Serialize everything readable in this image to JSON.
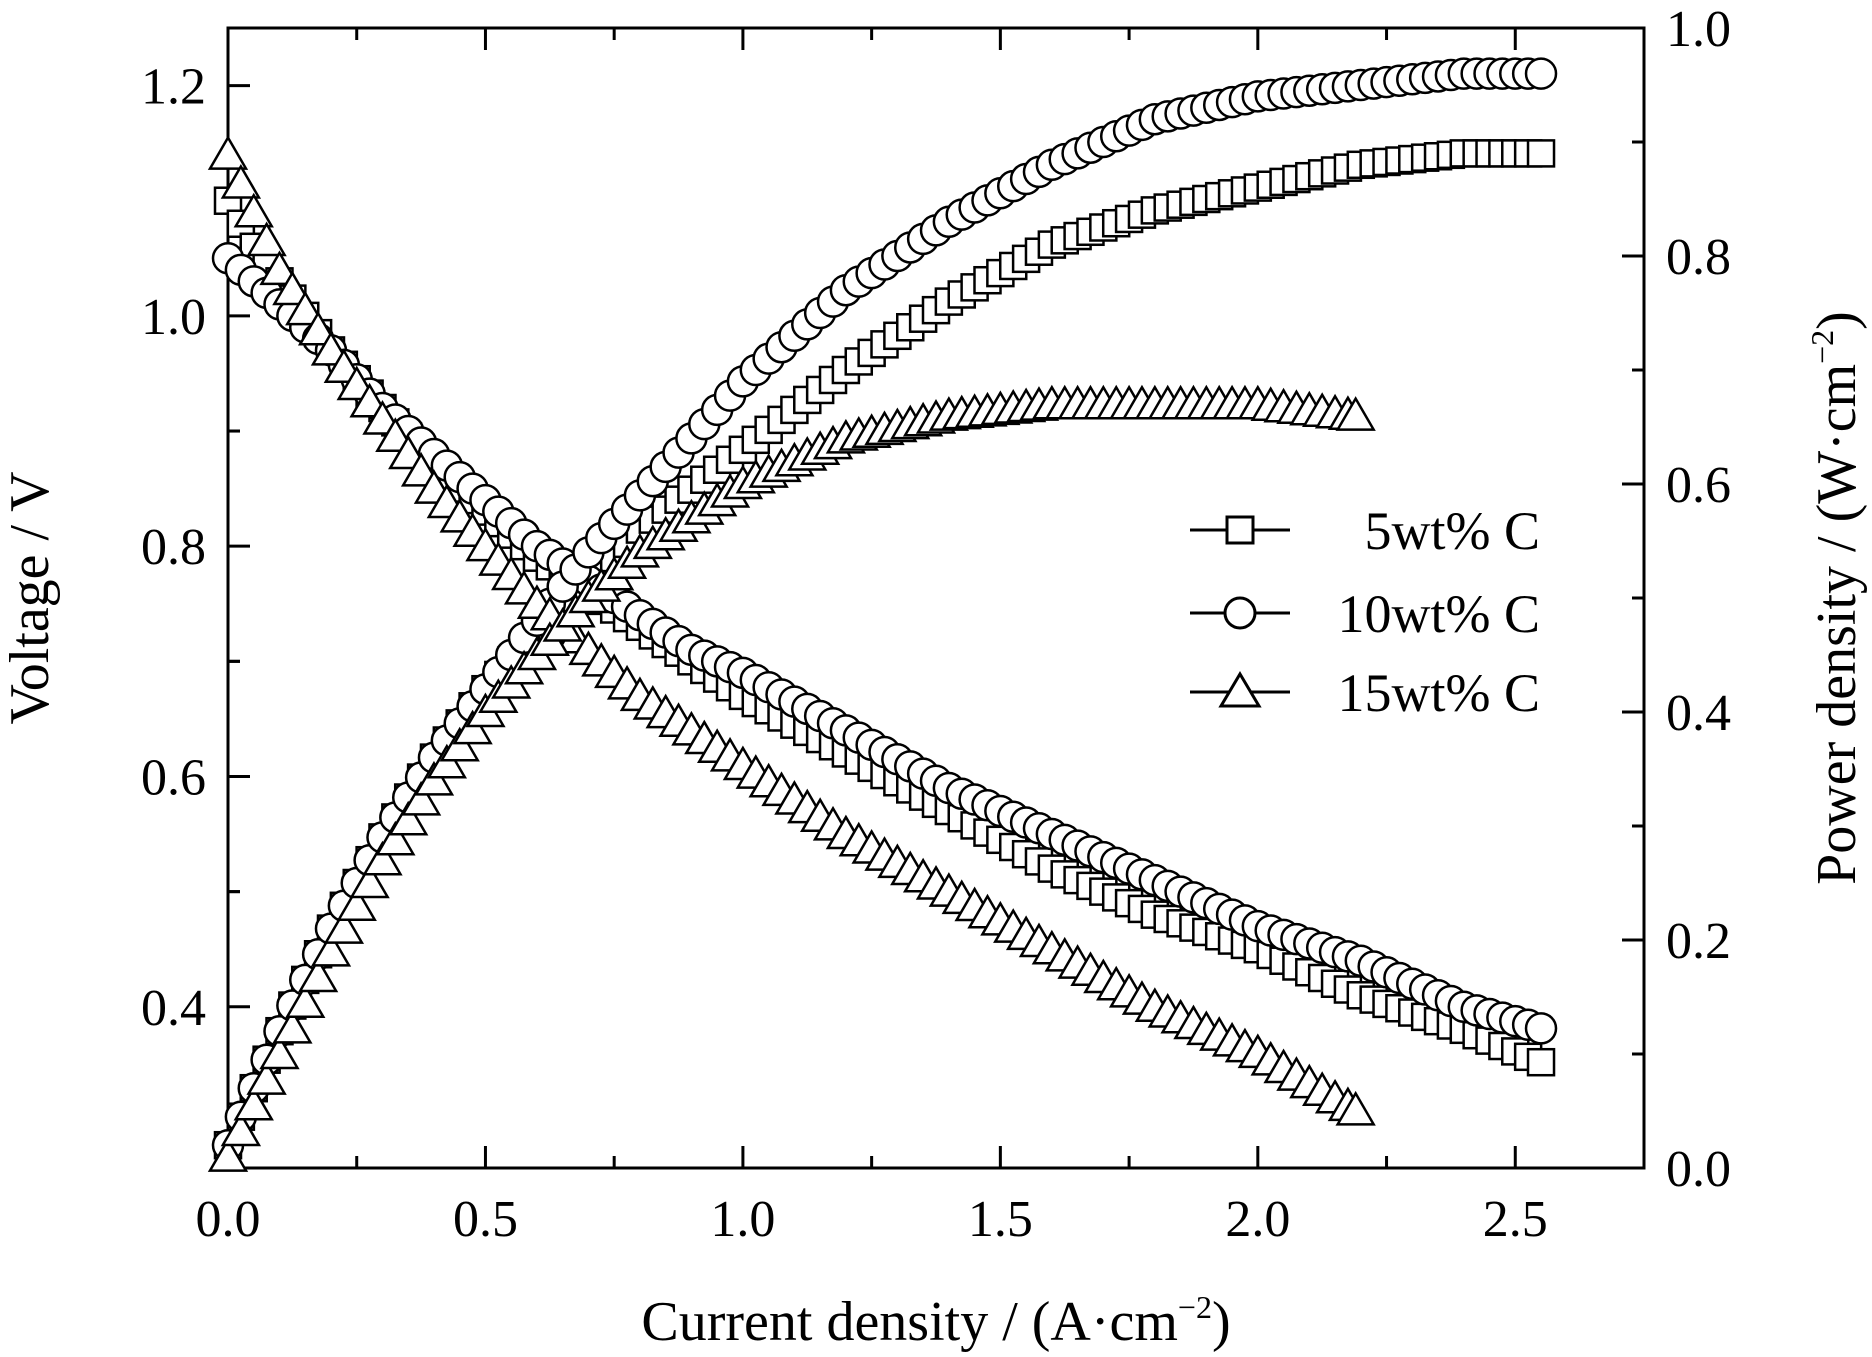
{
  "chart_data": {
    "type": "scatter",
    "xlabel": "Current density / (A·cm",
    "xlabel_sup": "−2",
    "xlabel_end": ")",
    "ylabel": "Voltage / V",
    "y2label": "Power density / (W·cm",
    "y2label_sup": "−2",
    "y2label_end": ")",
    "xlim": [
      0.0,
      2.75
    ],
    "ylim": [
      0.26,
      1.25
    ],
    "y2lim": [
      0.0,
      1.0
    ],
    "x_ticks": [
      "0.0",
      "0.5",
      "1.0",
      "1.5",
      "2.0",
      "2.5"
    ],
    "y_ticks": [
      "0.4",
      "0.6",
      "0.8",
      "1.0",
      "1.2"
    ],
    "y2_ticks": [
      "0.0",
      "0.2",
      "0.4",
      "0.6",
      "0.8",
      "1.0"
    ],
    "grid": false,
    "legend_position": "center-right",
    "series": [
      {
        "name": "5wt% C",
        "marker": "square",
        "x_max": 2.56,
        "x_step": 0.025,
        "voltage": {
          "x": [
            0.0,
            0.05,
            0.1,
            0.2,
            0.3,
            0.4,
            0.5,
            0.6,
            0.7,
            0.8,
            0.9,
            1.0,
            1.2,
            1.4,
            1.6,
            1.8,
            2.0,
            2.2,
            2.4,
            2.56
          ],
          "y": [
            1.1,
            1.06,
            1.03,
            0.97,
            0.92,
            0.87,
            0.83,
            0.79,
            0.76,
            0.73,
            0.7,
            0.67,
            0.62,
            0.57,
            0.52,
            0.48,
            0.45,
            0.41,
            0.38,
            0.35
          ]
        },
        "power": {
          "x": [
            0.0,
            0.1,
            0.2,
            0.3,
            0.4,
            0.5,
            0.6,
            0.7,
            0.8,
            1.0,
            1.2,
            1.4,
            1.6,
            1.8,
            2.0,
            2.2,
            2.4,
            2.56
          ],
          "y": [
            0.02,
            0.12,
            0.21,
            0.29,
            0.36,
            0.42,
            0.47,
            0.51,
            0.56,
            0.63,
            0.7,
            0.76,
            0.81,
            0.84,
            0.86,
            0.88,
            0.89,
            0.89
          ]
        }
      },
      {
        "name": "10wt% C",
        "marker": "circle",
        "x_max": 2.56,
        "x_step": 0.025,
        "voltage": {
          "x": [
            0.0,
            0.05,
            0.1,
            0.2,
            0.3,
            0.4,
            0.5,
            0.6,
            0.7,
            0.8,
            0.9,
            1.0,
            1.2,
            1.4,
            1.6,
            1.8,
            2.0,
            2.2,
            2.4,
            2.56
          ],
          "y": [
            1.05,
            1.03,
            1.01,
            0.97,
            0.92,
            0.88,
            0.84,
            0.8,
            0.77,
            0.74,
            0.71,
            0.69,
            0.64,
            0.59,
            0.55,
            0.51,
            0.47,
            0.44,
            0.4,
            0.38
          ]
        },
        "power": {
          "x": [
            0.0,
            0.1,
            0.2,
            0.3,
            0.4,
            0.5,
            0.6,
            0.7,
            0.8,
            1.0,
            1.2,
            1.4,
            1.6,
            1.8,
            2.0,
            2.2,
            2.4,
            2.56
          ],
          "y": [
            0.02,
            0.12,
            0.21,
            0.29,
            0.36,
            0.42,
            0.48,
            0.54,
            0.59,
            0.69,
            0.77,
            0.83,
            0.88,
            0.92,
            0.94,
            0.95,
            0.96,
            0.96
          ]
        }
      },
      {
        "name": "15wt% C",
        "marker": "triangle",
        "x_max": 2.19,
        "x_step": 0.025,
        "voltage": {
          "x": [
            0.0,
            0.05,
            0.1,
            0.2,
            0.3,
            0.4,
            0.5,
            0.6,
            0.7,
            0.8,
            0.9,
            1.0,
            1.2,
            1.4,
            1.6,
            1.8,
            2.0,
            2.19
          ],
          "y": [
            1.14,
            1.09,
            1.04,
            0.97,
            0.91,
            0.85,
            0.8,
            0.75,
            0.71,
            0.67,
            0.64,
            0.61,
            0.55,
            0.5,
            0.45,
            0.4,
            0.36,
            0.31
          ]
        },
        "power": {
          "x": [
            0.0,
            0.1,
            0.2,
            0.3,
            0.4,
            0.5,
            0.6,
            0.7,
            0.8,
            1.0,
            1.2,
            1.4,
            1.6,
            1.8,
            2.0,
            2.19
          ],
          "y": [
            0.01,
            0.1,
            0.19,
            0.27,
            0.34,
            0.4,
            0.45,
            0.5,
            0.54,
            0.6,
            0.64,
            0.66,
            0.67,
            0.67,
            0.67,
            0.66
          ]
        }
      }
    ]
  }
}
